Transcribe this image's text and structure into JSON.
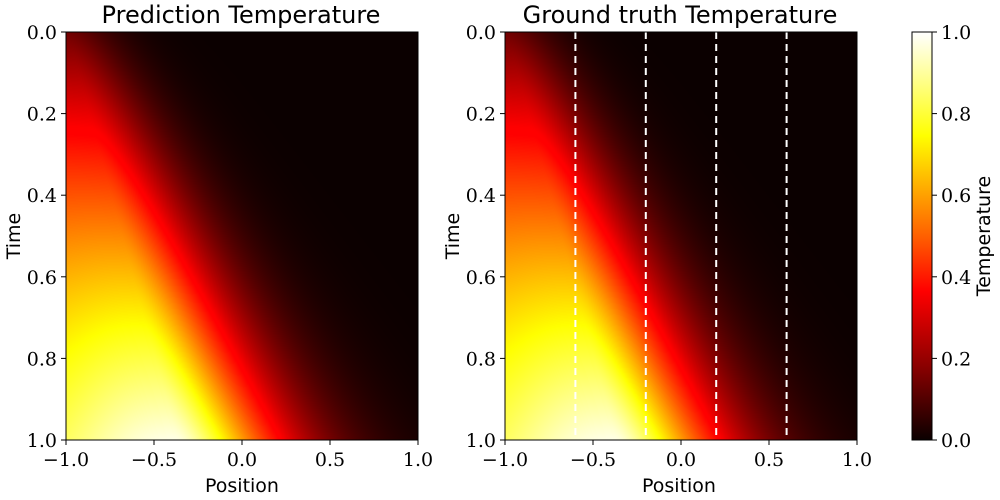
{
  "chart_data": [
    {
      "type": "heatmap",
      "title": "Prediction Temperature",
      "xlabel": "Position",
      "ylabel": "Time",
      "xlim": [
        -1.0,
        1.0
      ],
      "ylim": [
        1.0,
        0.0
      ],
      "xticks": [
        -1.0,
        -0.5,
        0.0,
        0.5,
        1.0
      ],
      "xtick_labels": [
        "−1.0",
        "−0.5",
        "0.0",
        "0.5",
        "1.0"
      ],
      "yticks": [
        0.0,
        0.2,
        0.4,
        0.6,
        0.8,
        1.0
      ],
      "ytick_labels": [
        "0.0",
        "0.2",
        "0.4",
        "0.6",
        "0.8",
        "1.0"
      ],
      "colormap": "hot",
      "value_range": [
        0.0,
        1.0
      ],
      "approx_field": {
        "peak_value": 1.0,
        "peak_position": -0.5,
        "peak_time": 1.0
      }
    },
    {
      "type": "heatmap",
      "title": "Ground truth Temperature",
      "xlabel": "Position",
      "ylabel": "Time",
      "xlim": [
        -1.0,
        1.0
      ],
      "ylim": [
        1.0,
        0.0
      ],
      "xticks": [
        -1.0,
        -0.5,
        0.0,
        0.5,
        1.0
      ],
      "xtick_labels": [
        "−1.0",
        "−0.5",
        "0.0",
        "0.5",
        "1.0"
      ],
      "yticks": [
        0.0,
        0.2,
        0.4,
        0.6,
        0.8,
        1.0
      ],
      "ytick_labels": [
        "0.0",
        "0.2",
        "0.4",
        "0.6",
        "0.8",
        "1.0"
      ],
      "colormap": "hot",
      "value_range": [
        0.0,
        1.0
      ],
      "dashed_vertical_lines_at_position": [
        -0.6,
        -0.2,
        0.2,
        0.6
      ],
      "dashed_line_color": "#ffffff",
      "approx_field": {
        "peak_value": 1.0,
        "peak_position": -0.5,
        "peak_time": 1.0
      }
    }
  ],
  "colorbar": {
    "label": "Temperature",
    "min": 0.0,
    "max": 1.0,
    "ticks": [
      0.0,
      0.2,
      0.4,
      0.6,
      0.8,
      1.0
    ],
    "tick_labels": [
      "0.0",
      "0.2",
      "0.4",
      "0.6",
      "0.8",
      "1.0"
    ]
  }
}
